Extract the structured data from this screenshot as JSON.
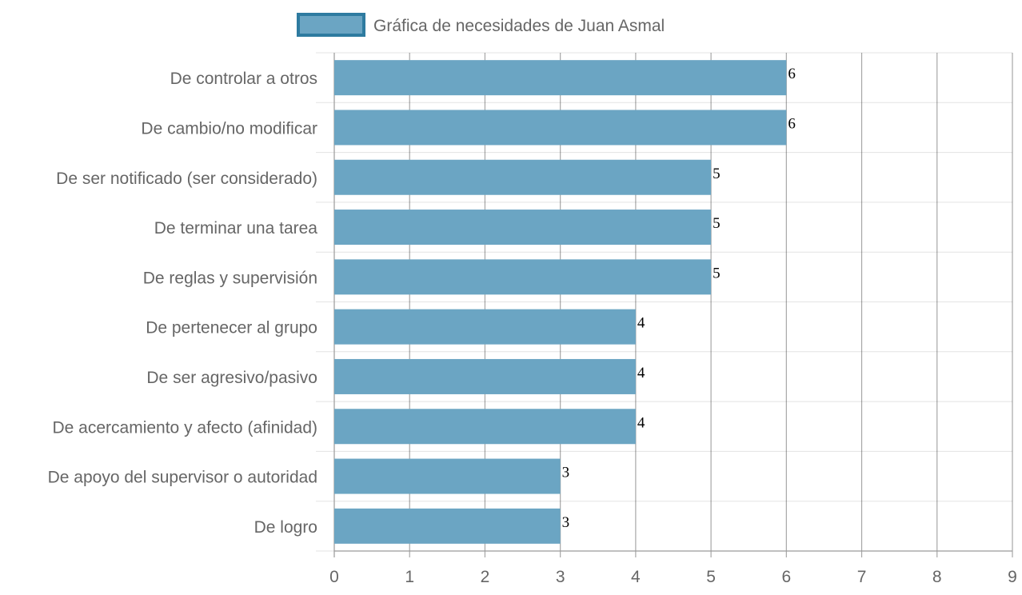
{
  "chart_data": {
    "type": "bar",
    "orientation": "horizontal",
    "legend_position": "top",
    "grid": true,
    "xlim": [
      0,
      9
    ],
    "x_ticks": [
      "0",
      "1",
      "2",
      "3",
      "4",
      "5",
      "6",
      "7",
      "8",
      "9"
    ],
    "categories": [
      "De controlar a otros",
      "De cambio/no modificar",
      "De ser notificado (ser considerado)",
      "De terminar una tarea",
      "De reglas y supervisión",
      "De pertenecer al grupo",
      "De ser agresivo/pasivo",
      "De acercamiento y afecto (afinidad)",
      "De apoyo del supervisor o autoridad",
      "De logro"
    ],
    "series": [
      {
        "name": "Gráfica de necesidades de Juan Asmal",
        "values": [
          6,
          6,
          5,
          5,
          5,
          4,
          4,
          4,
          3,
          3
        ],
        "color": "#6ba5c3",
        "border_color": "#2e7ba0"
      }
    ]
  }
}
